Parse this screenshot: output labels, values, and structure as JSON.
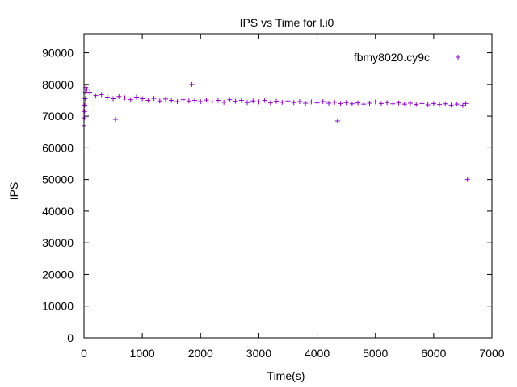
{
  "chart_data": {
    "type": "scatter",
    "title": "IPS vs Time for l.i0",
    "xlabel": "Time(s)",
    "ylabel": "IPS",
    "xlim": [
      0,
      7000
    ],
    "ylim": [
      0,
      96000
    ],
    "x_ticks": [
      0,
      1000,
      2000,
      3000,
      4000,
      5000,
      6000,
      7000
    ],
    "x_tick_labels": [
      "0",
      "1000",
      "2000",
      "3000",
      "4000",
      "5000",
      "6000",
      "7000"
    ],
    "y_ticks": [
      0,
      10000,
      20000,
      30000,
      40000,
      50000,
      60000,
      70000,
      80000,
      90000
    ],
    "y_tick_labels": [
      "0",
      "10000",
      "20000",
      "30000",
      "40000",
      "50000",
      "60000",
      "70000",
      "80000",
      "90000"
    ],
    "grid": false,
    "legend_position": "top-right",
    "marker": "plus",
    "series": [
      {
        "name": "fbmy8020.cy9c",
        "color": "#9400d3",
        "points": [
          [
            0,
            67000
          ],
          [
            5,
            69500
          ],
          [
            10,
            71500
          ],
          [
            15,
            73500
          ],
          [
            20,
            75500
          ],
          [
            25,
            77500
          ],
          [
            30,
            79000
          ],
          [
            50,
            78500
          ],
          [
            100,
            77500
          ],
          [
            200,
            76500
          ],
          [
            300,
            76800
          ],
          [
            400,
            76000
          ],
          [
            500,
            75500
          ],
          [
            540,
            69000
          ],
          [
            600,
            76200
          ],
          [
            700,
            75800
          ],
          [
            800,
            75200
          ],
          [
            900,
            76000
          ],
          [
            1000,
            75500
          ],
          [
            1100,
            75000
          ],
          [
            1200,
            75600
          ],
          [
            1300,
            74800
          ],
          [
            1400,
            75400
          ],
          [
            1500,
            75000
          ],
          [
            1600,
            74600
          ],
          [
            1700,
            75200
          ],
          [
            1800,
            74800
          ],
          [
            1850,
            80000
          ],
          [
            1900,
            75000
          ],
          [
            2000,
            74600
          ],
          [
            2100,
            75100
          ],
          [
            2200,
            74500
          ],
          [
            2300,
            75000
          ],
          [
            2400,
            74400
          ],
          [
            2500,
            75200
          ],
          [
            2600,
            74700
          ],
          [
            2700,
            75000
          ],
          [
            2800,
            74300
          ],
          [
            2900,
            74800
          ],
          [
            3000,
            74500
          ],
          [
            3100,
            75000
          ],
          [
            3200,
            74200
          ],
          [
            3300,
            74700
          ],
          [
            3400,
            74400
          ],
          [
            3500,
            74800
          ],
          [
            3600,
            74300
          ],
          [
            3700,
            74600
          ],
          [
            3800,
            74100
          ],
          [
            3900,
            74500
          ],
          [
            4000,
            74200
          ],
          [
            4100,
            74600
          ],
          [
            4200,
            74100
          ],
          [
            4300,
            74400
          ],
          [
            4350,
            68500
          ],
          [
            4400,
            74000
          ],
          [
            4500,
            74300
          ],
          [
            4600,
            73900
          ],
          [
            4700,
            74200
          ],
          [
            4800,
            73800
          ],
          [
            4900,
            74100
          ],
          [
            5000,
            74500
          ],
          [
            5100,
            74000
          ],
          [
            5200,
            74300
          ],
          [
            5300,
            73900
          ],
          [
            5400,
            74200
          ],
          [
            5500,
            73800
          ],
          [
            5600,
            74100
          ],
          [
            5700,
            73700
          ],
          [
            5800,
            74000
          ],
          [
            5900,
            73600
          ],
          [
            6000,
            74000
          ],
          [
            6100,
            73700
          ],
          [
            6200,
            73900
          ],
          [
            6300,
            73500
          ],
          [
            6400,
            73800
          ],
          [
            6500,
            73400
          ],
          [
            6550,
            74000
          ],
          [
            6580,
            50000
          ]
        ]
      }
    ]
  }
}
